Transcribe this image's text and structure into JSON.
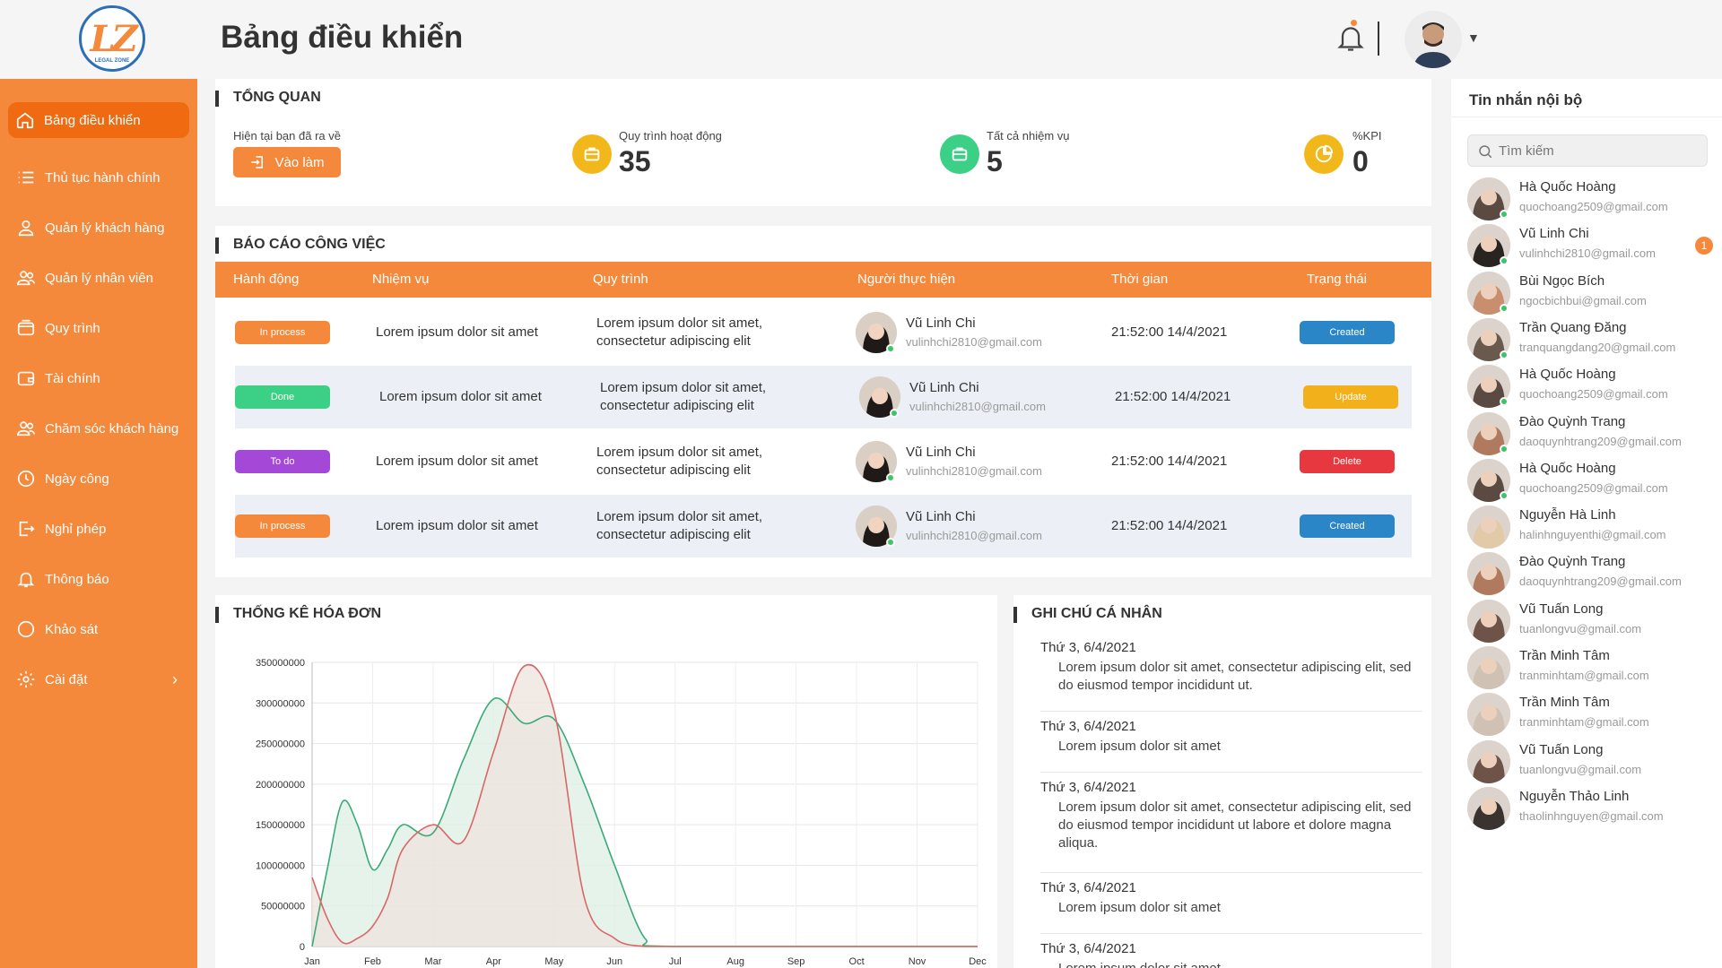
{
  "header": {
    "title": "Bảng điều khiển"
  },
  "logo": {
    "text": "LZ",
    "sub": "LEGAL ZONE"
  },
  "sidebar": {
    "items": [
      {
        "label": "Bảng điều khiển",
        "icon": "home-icon"
      },
      {
        "label": "Thủ tục hành chính",
        "icon": "list-icon"
      },
      {
        "label": "Quản lý khách hàng",
        "icon": "user-icon"
      },
      {
        "label": "Quản lý nhân viên",
        "icon": "users-icon"
      },
      {
        "label": "Quy trình",
        "icon": "wallet-icon"
      },
      {
        "label": "Tài chính",
        "icon": "wallet-icon"
      },
      {
        "label": "Chăm sóc khách hàng",
        "icon": "users-icon"
      },
      {
        "label": "Ngày công",
        "icon": "clock-icon"
      },
      {
        "label": "Nghỉ phép",
        "icon": "exit-icon"
      },
      {
        "label": "Thông báo",
        "icon": "bell-icon"
      },
      {
        "label": "Khảo sát",
        "icon": "chat-icon"
      },
      {
        "label": "Cài đặt",
        "icon": "gear-icon"
      }
    ],
    "chevron": "›"
  },
  "overview": {
    "title": "TỔNG QUAN",
    "status_label": "Hiện tại bạn đã ra về",
    "checkin_label": "Vào làm",
    "processes_label": "Quy trình hoạt động",
    "processes_value": "35",
    "tasks_label": "Tất cả nhiệm vụ",
    "tasks_value": "5",
    "kpi_label": "%KPI",
    "kpi_value": "0"
  },
  "report": {
    "title": "BÁO CÁO CÔNG VIỆC",
    "columns": [
      "Hành động",
      "Nhiệm vụ",
      "Quy trình",
      "Người thực hiện",
      "Thời gian",
      "Trạng thái"
    ],
    "rows": [
      {
        "action": "In process",
        "action_color": "#f5893b",
        "task": "Lorem ipsum dolor sit amet",
        "process1": "Lorem ipsum dolor sit amet,",
        "process2": "consectetur adipiscing elit",
        "name": "Vũ Linh Chi",
        "email": "vulinhchi2810@gmail.com",
        "time": "21:52:00 14/4/2021",
        "status": "Created",
        "status_color": "#2b86c8"
      },
      {
        "action": "Done",
        "action_color": "#3ccf86",
        "task": "Lorem ipsum dolor sit amet",
        "process1": "Lorem ipsum dolor sit amet,",
        "process2": "consectetur adipiscing elit",
        "name": "Vũ Linh Chi",
        "email": "vulinhchi2810@gmail.com",
        "time": "21:52:00 14/4/2021",
        "status": "Update",
        "status_color": "#f2b01b"
      },
      {
        "action": "To do",
        "action_color": "#a448d8",
        "task": "Lorem ipsum dolor sit amet",
        "process1": "Lorem ipsum dolor sit amet,",
        "process2": "consectetur adipiscing elit",
        "name": "Vũ Linh Chi",
        "email": "vulinhchi2810@gmail.com",
        "time": "21:52:00 14/4/2021",
        "status": "Delete",
        "status_color": "#e8383f"
      },
      {
        "action": "In process",
        "action_color": "#f5893b",
        "task": "Lorem ipsum dolor sit amet",
        "process1": "Lorem ipsum dolor sit amet,",
        "process2": "consectetur adipiscing elit",
        "name": "Vũ Linh Chi",
        "email": "vulinhchi2810@gmail.com",
        "time": "21:52:00 14/4/2021",
        "status": "Created",
        "status_color": "#2b86c8"
      }
    ]
  },
  "invoice": {
    "title": "THỐNG KÊ HÓA ĐƠN"
  },
  "chart_data": {
    "type": "area",
    "title": "",
    "xlabel": "",
    "ylabel": "",
    "categories": [
      "Jan",
      "Feb",
      "Mar",
      "Apr",
      "May",
      "Jun",
      "Jul",
      "Aug",
      "Sep",
      "Oct",
      "Nov",
      "Dec"
    ],
    "y_ticks": [
      "0",
      "50000000",
      "100000000",
      "150000000",
      "200000000",
      "250000000",
      "300000000",
      "350000000"
    ],
    "ylim": [
      0,
      350000000
    ],
    "grid": true,
    "series": [
      {
        "color": "#3caa78",
        "fill": "#dcefe3",
        "points": [
          [
            0,
            0
          ],
          [
            0.25,
            95000000
          ],
          [
            0.5,
            178000000
          ],
          [
            0.75,
            150000000
          ],
          [
            1.0,
            95000000
          ],
          [
            1.25,
            120000000
          ],
          [
            1.5,
            150000000
          ],
          [
            2.0,
            140000000
          ],
          [
            2.5,
            230000000
          ],
          [
            3.0,
            305000000
          ],
          [
            3.5,
            275000000
          ],
          [
            4.0,
            280000000
          ],
          [
            4.5,
            200000000
          ],
          [
            5.0,
            100000000
          ],
          [
            5.5,
            10000000
          ],
          [
            6.0,
            0
          ],
          [
            11.0,
            0
          ]
        ]
      },
      {
        "color": "#d86868",
        "fill": "#eee3dc",
        "points": [
          [
            0,
            85000000
          ],
          [
            0.25,
            35000000
          ],
          [
            0.5,
            5000000
          ],
          [
            0.75,
            10000000
          ],
          [
            1.0,
            25000000
          ],
          [
            1.25,
            60000000
          ],
          [
            1.5,
            120000000
          ],
          [
            2.0,
            150000000
          ],
          [
            2.5,
            130000000
          ],
          [
            3.0,
            240000000
          ],
          [
            3.5,
            345000000
          ],
          [
            4.0,
            290000000
          ],
          [
            4.5,
            60000000
          ],
          [
            5.0,
            10000000
          ],
          [
            5.5,
            0
          ],
          [
            6.0,
            0
          ],
          [
            11.0,
            0
          ]
        ]
      }
    ]
  },
  "notes": {
    "title": "GHI CHÚ CÁ NHÂN",
    "items": [
      {
        "date": "Thứ 3, 6/4/2021",
        "text": "Lorem ipsum dolor sit amet, consectetur adipiscing elit, sed do eiusmod tempor incididunt ut."
      },
      {
        "date": "Thứ 3, 6/4/2021",
        "text": "Lorem ipsum dolor sit amet"
      },
      {
        "date": "Thứ 3, 6/4/2021",
        "text": "Lorem ipsum dolor sit amet, consectetur adipiscing elit, sed do eiusmod tempor incididunt ut labore et dolore magna aliqua."
      },
      {
        "date": "Thứ 3, 6/4/2021",
        "text": "Lorem ipsum dolor sit amet"
      },
      {
        "date": "Thứ 3, 6/4/2021",
        "text": "Lorem ipsum dolor sit amet"
      }
    ]
  },
  "messages": {
    "title": "Tin nhắn nội bộ",
    "search_placeholder": "Tìm kiếm",
    "contacts": [
      {
        "name": "Hà Quốc Hoàng",
        "email": "quochoang2509@gmail.com",
        "online": true,
        "badge": ""
      },
      {
        "name": "Vũ Linh Chi",
        "email": "vulinhchi2810@gmail.com",
        "online": true,
        "badge": "1"
      },
      {
        "name": "Bùi Ngọc Bích",
        "email": "ngocbichbui@gmail.com",
        "online": true,
        "badge": ""
      },
      {
        "name": "Trần Quang Đăng",
        "email": "tranquangdang20@gmail.com",
        "online": true,
        "badge": ""
      },
      {
        "name": "Hà Quốc Hoàng",
        "email": "quochoang2509@gmail.com",
        "online": true,
        "badge": ""
      },
      {
        "name": "Đào Quỳnh Trang",
        "email": "daoquynhtrang209@gmail.com",
        "online": true,
        "badge": ""
      },
      {
        "name": "Hà Quốc Hoàng",
        "email": "quochoang2509@gmail.com",
        "online": true,
        "badge": ""
      },
      {
        "name": "Nguyễn Hà Linh",
        "email": "halinhnguyenthi@gmail.com",
        "online": false,
        "badge": ""
      },
      {
        "name": "Đào Quỳnh Trang",
        "email": "daoquynhtrang209@gmail.com",
        "online": false,
        "badge": ""
      },
      {
        "name": "Vũ Tuấn Long",
        "email": "tuanlongvu@gmail.com",
        "online": false,
        "badge": ""
      },
      {
        "name": "Trần Minh Tâm",
        "email": "tranminhtam@gmail.com",
        "online": false,
        "badge": ""
      },
      {
        "name": "Trần Minh Tâm",
        "email": "tranminhtam@gmail.com",
        "online": false,
        "badge": ""
      },
      {
        "name": "Vũ Tuấn Long",
        "email": "tuanlongvu@gmail.com",
        "online": false,
        "badge": ""
      },
      {
        "name": "Nguyễn Thảo Linh",
        "email": "thaolinhnguyen@gmail.com",
        "online": false,
        "badge": ""
      }
    ]
  },
  "colors": {
    "brand": "#f5893b",
    "active": "#f06a12"
  }
}
